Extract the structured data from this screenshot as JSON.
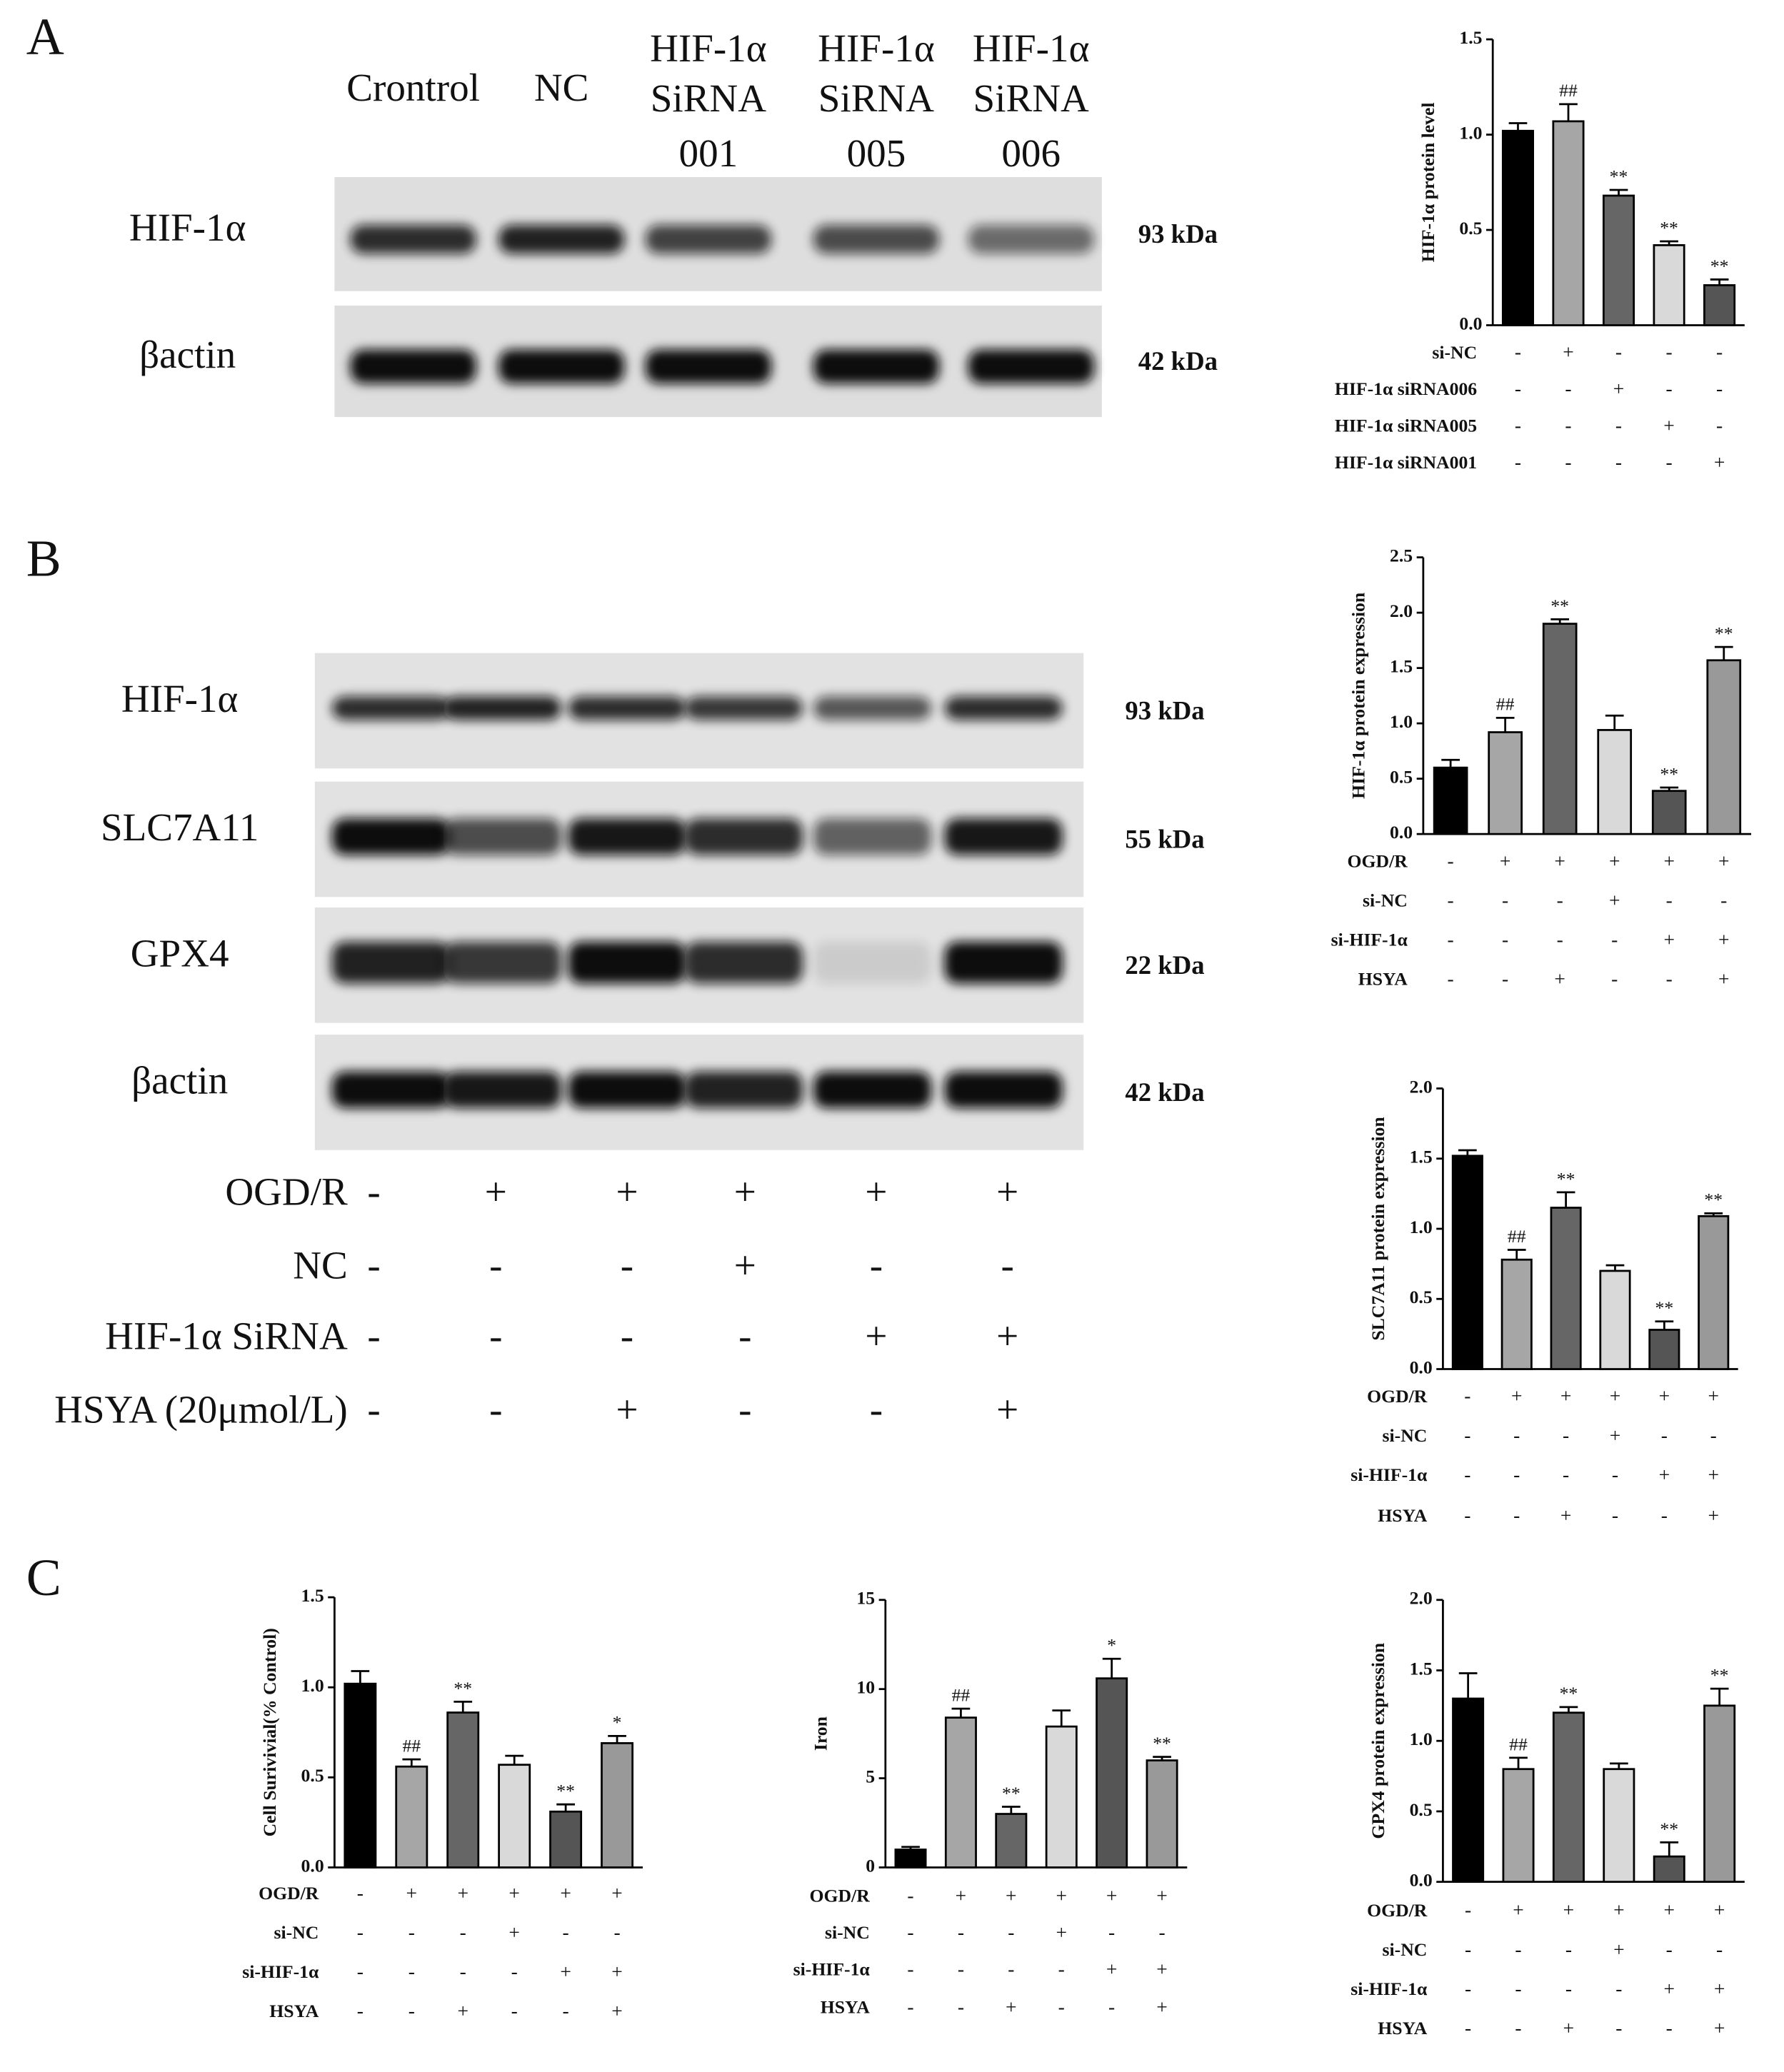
{
  "panels": [
    "A",
    "B",
    "C"
  ],
  "blot_a": {
    "lanes": [
      [
        "Crontrol"
      ],
      [
        "NC"
      ],
      [
        "HIF-1α",
        "SiRNA",
        "001"
      ],
      [
        "HIF-1α",
        "SiRNA",
        "005"
      ],
      [
        "HIF-1α",
        "SiRNA",
        "006"
      ]
    ],
    "rows": [
      {
        "label": "HIF-1α",
        "size": "93 kDa"
      },
      {
        "label": "βactin",
        "size": "42 kDa"
      }
    ]
  },
  "blot_b": {
    "rows": [
      {
        "label": "HIF-1α",
        "size": "93 kDa"
      },
      {
        "label": "SLC7A11",
        "size": "55 kDa"
      },
      {
        "label": "GPX4",
        "size": "22 kDa"
      },
      {
        "label": "βactin",
        "size": "42 kDa"
      }
    ],
    "treatments": [
      {
        "label": "OGD/R",
        "signs": [
          "-",
          "+",
          "+",
          "+",
          "+",
          "+"
        ]
      },
      {
        "label": "NC",
        "signs": [
          "-",
          "-",
          "-",
          "+",
          "-",
          "-"
        ]
      },
      {
        "label": "HIF-1α SiRNA",
        "signs": [
          "-",
          "-",
          "-",
          "-",
          "+",
          "+"
        ]
      },
      {
        "label": "HSYA (20μmol/L)",
        "signs": [
          "-",
          "-",
          "+",
          "-",
          "-",
          "+"
        ]
      }
    ]
  },
  "chart_data": [
    {
      "type": "bar",
      "ylabel": "HIF-1α protein level",
      "categories": [
        null,
        null,
        null,
        null,
        null
      ],
      "values": [
        1.02,
        1.07,
        0.68,
        0.42,
        0.21
      ],
      "errors": [
        0.04,
        0.09,
        0.03,
        0.02,
        0.03
      ],
      "annotations": [
        null,
        "##",
        "**",
        "**",
        "**"
      ],
      "colors": [
        "#000000",
        "#a6a6a6",
        "#666666",
        "#d9d9d9",
        "#555555"
      ],
      "ylim": [
        0,
        1.5
      ],
      "yticks": [
        {
          "value": 0,
          "label": "0.0"
        },
        0.5,
        {
          "value": 1,
          "label": "1.0"
        },
        1.5
      ],
      "conditions": [
        {
          "label": "si-NC",
          "signs": [
            "-",
            "+",
            "-",
            "-",
            "-"
          ]
        },
        {
          "label": "HIF-1α siRNA006",
          "signs": [
            "-",
            "-",
            "+",
            "-",
            "-"
          ]
        },
        {
          "label": "HIF-1α siRNA005",
          "signs": [
            "-",
            "-",
            "-",
            "+",
            "-"
          ]
        },
        {
          "label": "HIF-1α siRNA001",
          "signs": [
            "-",
            "-",
            "-",
            "-",
            "+"
          ]
        }
      ]
    },
    {
      "type": "bar",
      "ylabel": "HIF-1α protein expression",
      "categories": [
        null,
        null,
        null,
        null,
        null,
        null
      ],
      "values": [
        0.6,
        0.92,
        1.9,
        0.94,
        0.39,
        1.57
      ],
      "errors": [
        0.07,
        0.13,
        0.04,
        0.13,
        0.03,
        0.12
      ],
      "annotations": [
        null,
        "##",
        "**",
        null,
        "**",
        "**"
      ],
      "colors": [
        "#000000",
        "#a6a6a6",
        "#666666",
        "#d9d9d9",
        "#555555",
        "#999999"
      ],
      "ylim": [
        0,
        2.5
      ],
      "yticks": [
        {
          "value": 0,
          "label": "0.0"
        },
        0.5,
        {
          "value": 1,
          "label": "1.0"
        },
        1.5,
        {
          "value": 2,
          "label": "2.0"
        },
        2.5
      ],
      "conditions": [
        {
          "label": "OGD/R",
          "signs": [
            "-",
            "+",
            "+",
            "+",
            "+",
            "+"
          ]
        },
        {
          "label": "si-NC",
          "signs": [
            "-",
            "-",
            "-",
            "+",
            "-",
            "-"
          ]
        },
        {
          "label": "si-HIF-1α",
          "signs": [
            "-",
            "-",
            "-",
            "-",
            "+",
            "+"
          ]
        },
        {
          "label": "HSYA",
          "signs": [
            "-",
            "-",
            "+",
            "-",
            "-",
            "+"
          ]
        }
      ]
    },
    {
      "type": "bar",
      "ylabel": "SLC7A11 protein expression",
      "categories": [
        null,
        null,
        null,
        null,
        null,
        null
      ],
      "values": [
        1.52,
        0.78,
        1.15,
        0.7,
        0.28,
        1.09
      ],
      "errors": [
        0.04,
        0.07,
        0.11,
        0.04,
        0.06,
        0.02
      ],
      "annotations": [
        null,
        "##",
        "**",
        null,
        "**",
        "**"
      ],
      "colors": [
        "#000000",
        "#a6a6a6",
        "#666666",
        "#d9d9d9",
        "#555555",
        "#999999"
      ],
      "ylim": [
        0,
        2
      ],
      "yticks": [
        {
          "value": 0,
          "label": "0.0"
        },
        0.5,
        {
          "value": 1,
          "label": "1.0"
        },
        1.5,
        {
          "value": 2,
          "label": "2.0"
        }
      ],
      "conditions": [
        {
          "label": "OGD/R",
          "signs": [
            "-",
            "+",
            "+",
            "+",
            "+",
            "+"
          ]
        },
        {
          "label": "si-NC",
          "signs": [
            "-",
            "-",
            "-",
            "+",
            "-",
            "-"
          ]
        },
        {
          "label": "si-HIF-1α",
          "signs": [
            "-",
            "-",
            "-",
            "-",
            "+",
            "+"
          ]
        },
        {
          "label": "HSYA",
          "signs": [
            "-",
            "-",
            "+",
            "-",
            "-",
            "+"
          ]
        }
      ]
    },
    {
      "type": "bar",
      "ylabel": "Cell Surivivial(% Control)",
      "categories": [
        null,
        null,
        null,
        null,
        null,
        null
      ],
      "values": [
        1.02,
        0.56,
        0.86,
        0.57,
        0.31,
        0.69
      ],
      "errors": [
        0.07,
        0.04,
        0.06,
        0.05,
        0.04,
        0.04
      ],
      "annotations": [
        null,
        "##",
        "**",
        null,
        "**",
        "*"
      ],
      "colors": [
        "#000000",
        "#a6a6a6",
        "#666666",
        "#d9d9d9",
        "#555555",
        "#999999"
      ],
      "ylim": [
        0,
        1.5
      ],
      "yticks": [
        {
          "value": 0,
          "label": "0.0"
        },
        0.5,
        {
          "value": 1,
          "label": "1.0"
        },
        1.5
      ],
      "conditions": [
        {
          "label": "OGD/R",
          "signs": [
            "-",
            "+",
            "+",
            "+",
            "+",
            "+"
          ]
        },
        {
          "label": "si-NC",
          "signs": [
            "-",
            "-",
            "-",
            "+",
            "-",
            "-"
          ]
        },
        {
          "label": "si-HIF-1α",
          "signs": [
            "-",
            "-",
            "-",
            "-",
            "+",
            "+"
          ]
        },
        {
          "label": "HSYA",
          "signs": [
            "-",
            "-",
            "+",
            "-",
            "-",
            "+"
          ]
        }
      ]
    },
    {
      "type": "bar",
      "ylabel": "Iron",
      "categories": [
        null,
        null,
        null,
        null,
        null,
        null
      ],
      "values": [
        1.0,
        8.4,
        3.0,
        7.9,
        10.6,
        6.0
      ],
      "errors": [
        0.15,
        0.5,
        0.4,
        0.9,
        1.1,
        0.2
      ],
      "annotations": [
        null,
        "##",
        "**",
        null,
        "*",
        "**"
      ],
      "colors": [
        "#000000",
        "#a6a6a6",
        "#666666",
        "#d9d9d9",
        "#555555",
        "#999999"
      ],
      "ylim": [
        0,
        15
      ],
      "yticks": [
        0,
        5,
        10,
        15
      ],
      "conditions": [
        {
          "label": "OGD/R",
          "signs": [
            "-",
            "+",
            "+",
            "+",
            "+",
            "+"
          ]
        },
        {
          "label": "si-NC",
          "signs": [
            "-",
            "-",
            "-",
            "+",
            "-",
            "-"
          ]
        },
        {
          "label": "si-HIF-1α",
          "signs": [
            "-",
            "-",
            "-",
            "-",
            "+",
            "+"
          ]
        },
        {
          "label": "HSYA",
          "signs": [
            "-",
            "-",
            "+",
            "-",
            "-",
            "+"
          ]
        }
      ]
    },
    {
      "type": "bar",
      "ylabel": "GPX4 protein expression",
      "categories": [
        null,
        null,
        null,
        null,
        null,
        null
      ],
      "values": [
        1.3,
        0.8,
        1.2,
        0.8,
        0.18,
        1.25
      ],
      "errors": [
        0.18,
        0.08,
        0.04,
        0.04,
        0.1,
        0.12
      ],
      "annotations": [
        null,
        "##",
        "**",
        null,
        "**",
        "**"
      ],
      "colors": [
        "#000000",
        "#a6a6a6",
        "#666666",
        "#d9d9d9",
        "#555555",
        "#999999"
      ],
      "ylim": [
        0,
        2
      ],
      "yticks": [
        {
          "value": 0,
          "label": "0.0"
        },
        0.5,
        {
          "value": 1,
          "label": "1.0"
        },
        1.5,
        {
          "value": 2,
          "label": "2.0"
        }
      ],
      "conditions": [
        {
          "label": "OGD/R",
          "signs": [
            "-",
            "+",
            "+",
            "+",
            "+",
            "+"
          ]
        },
        {
          "label": "si-NC",
          "signs": [
            "-",
            "-",
            "-",
            "+",
            "-",
            "-"
          ]
        },
        {
          "label": "si-HIF-1α",
          "signs": [
            "-",
            "-",
            "-",
            "-",
            "+",
            "+"
          ]
        },
        {
          "label": "HSYA",
          "signs": [
            "-",
            "-",
            "+",
            "-",
            "-",
            "+"
          ]
        }
      ]
    }
  ]
}
